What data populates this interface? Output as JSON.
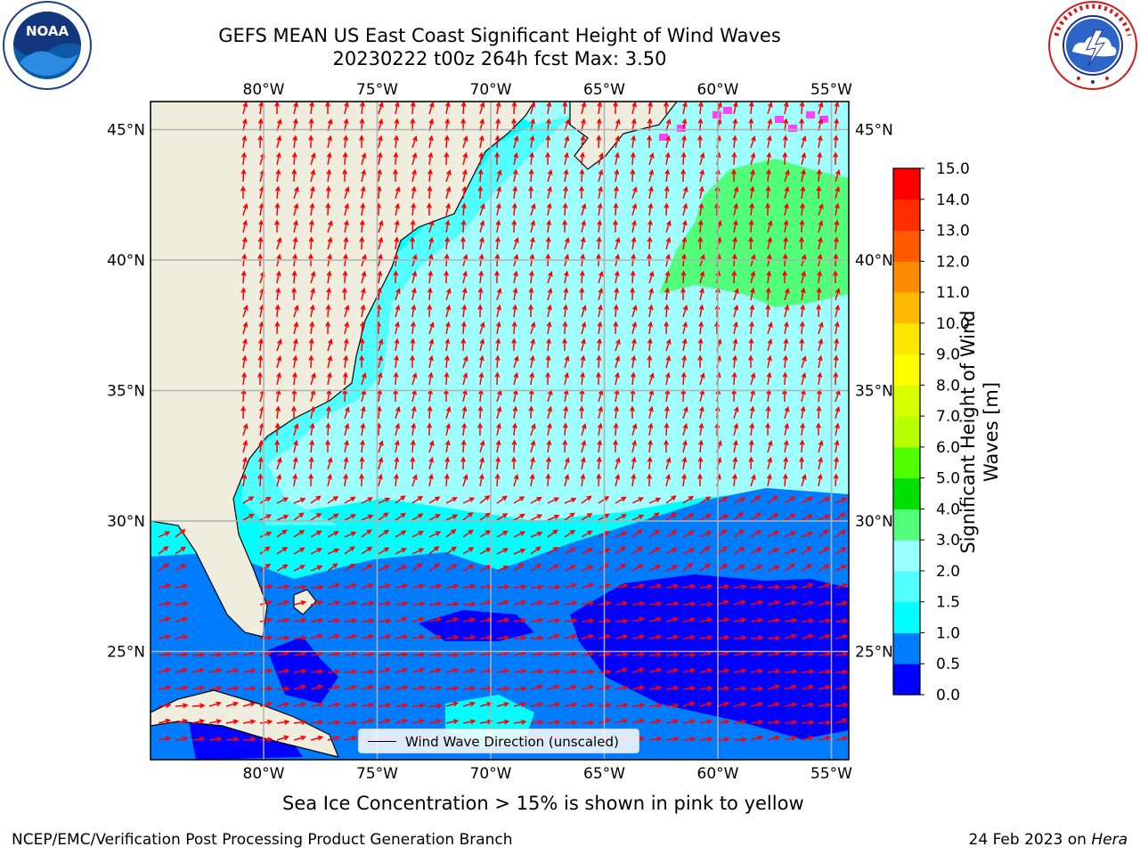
{
  "title": {
    "line1": "GEFS MEAN US East Coast Significant Height of Wind Waves",
    "line2": "20230222 t00z 264h fcst   Max: 3.50"
  },
  "logos": {
    "left_icon": "noaa-logo",
    "left_text": "NOAA",
    "right_icon": "nws-logo",
    "right_text": "NATIONAL WEATHER SERVICE"
  },
  "map": {
    "lon_labels": [
      "80°W",
      "75°W",
      "70°W",
      "65°W",
      "60°W",
      "55°W"
    ],
    "lat_labels": [
      "45°N",
      "40°N",
      "35°N",
      "30°N",
      "25°N"
    ],
    "legend_label": "Wind Wave Direction (unscaled)",
    "colors": {
      "land": "#efedde",
      "ocean_base": "#9ffefe",
      "sea_ice": "#ff40ff",
      "arrow": "#ff0000",
      "grid": "#b0b0b0"
    }
  },
  "colorbar": {
    "label": "Significant Height of Wind Waves [m]",
    "ticks": [
      "0.0",
      "0.5",
      "1.0",
      "1.5",
      "2.0",
      "3.0",
      "4.0",
      "5.0",
      "6.0",
      "7.0",
      "8.0",
      "9.0",
      "10.0",
      "11.0",
      "12.0",
      "13.0",
      "14.0",
      "15.0"
    ],
    "colors": [
      "#0000ff",
      "#007dff",
      "#00ffff",
      "#52ffff",
      "#9cffff",
      "#52ff7a",
      "#00e000",
      "#52ff00",
      "#b8ff00",
      "#d6ff00",
      "#ffff00",
      "#ffe600",
      "#ffba00",
      "#ff8c00",
      "#ff5a00",
      "#ff2d00",
      "#ff0000"
    ]
  },
  "sea_ice_note": "Sea Ice Concentration > 15% is shown in pink to yellow",
  "footer": {
    "left": "NCEP/EMC/Verification Post Processing Product Generation Branch",
    "date": "24 Feb 2023 on ",
    "machine": "Hera"
  }
}
